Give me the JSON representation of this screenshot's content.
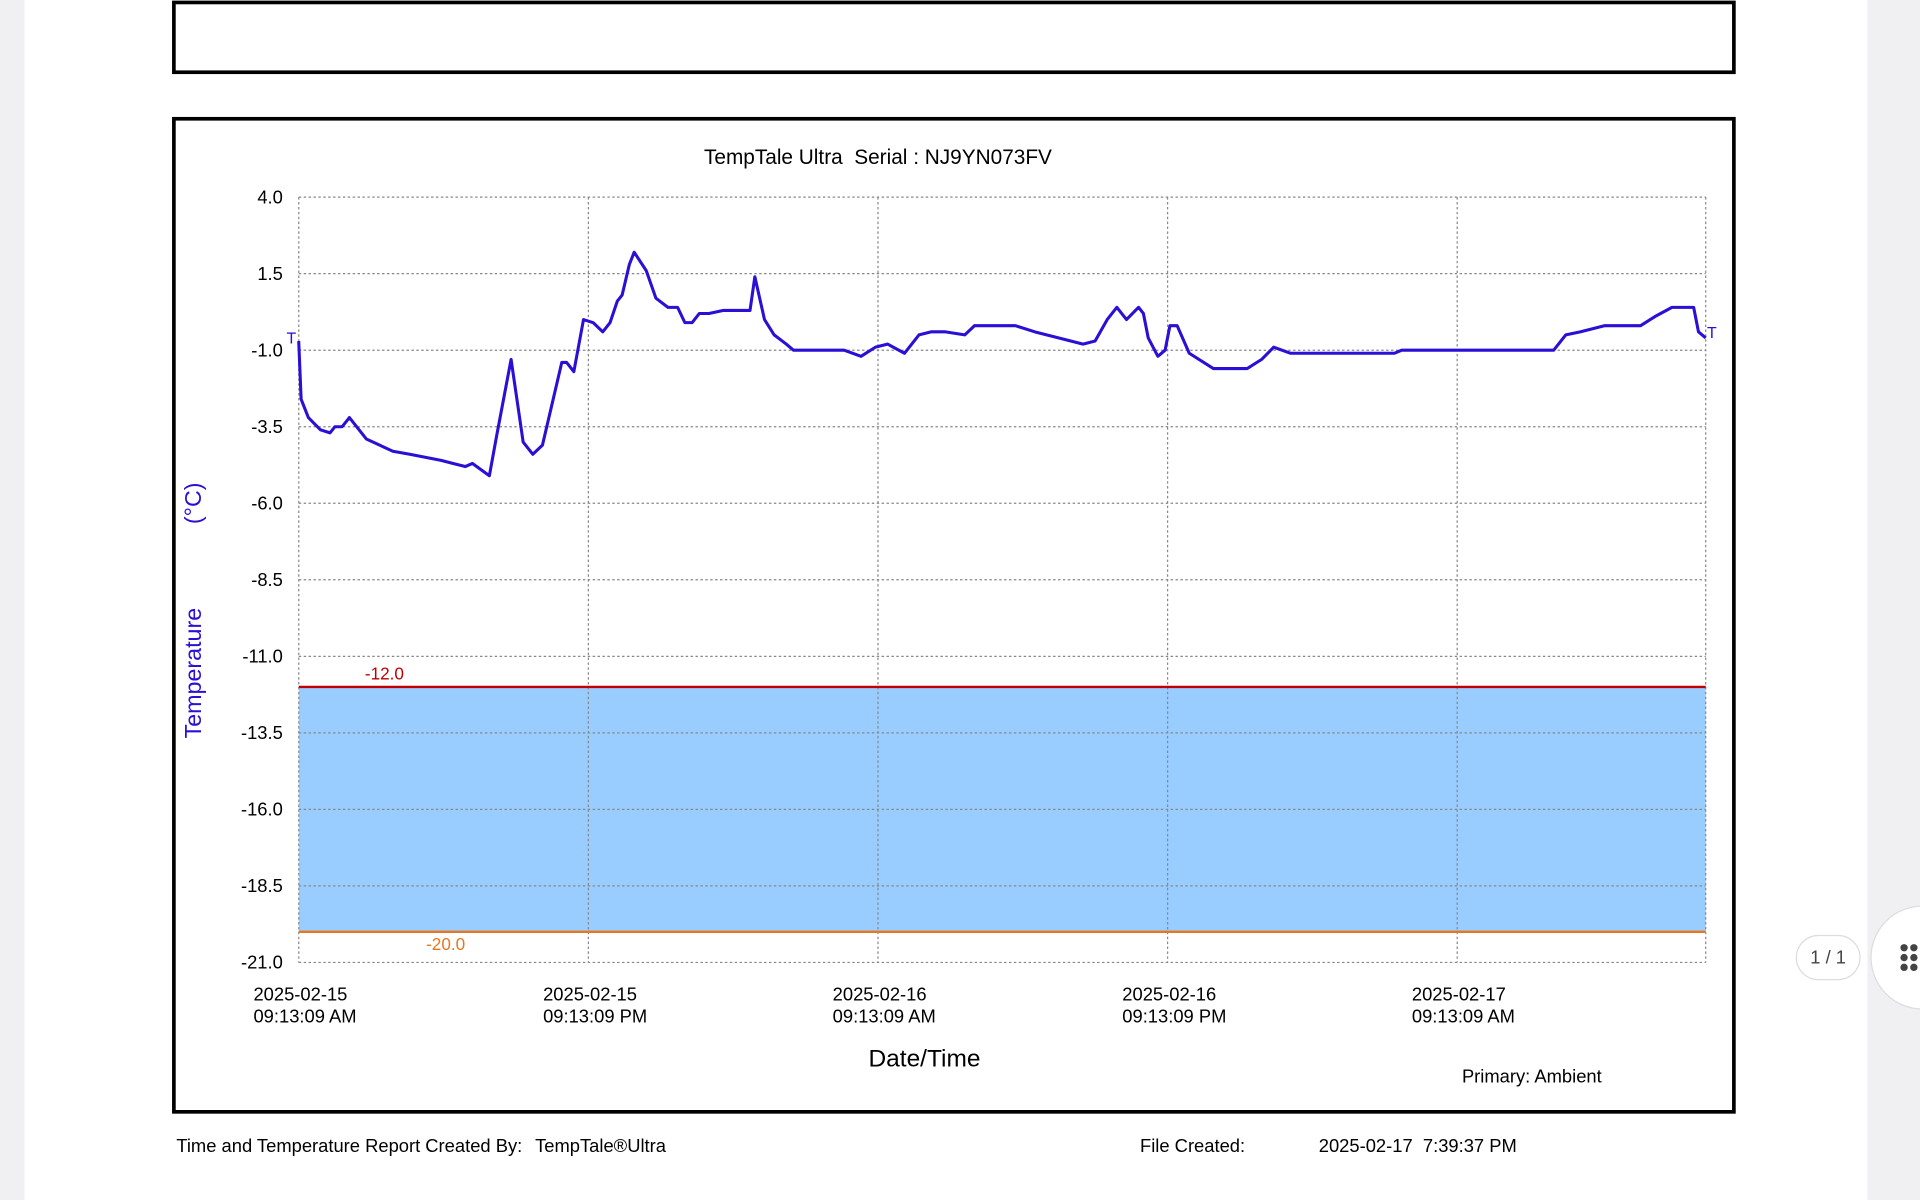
{
  "chart_data": {
    "type": "line",
    "title": "TempTale Ultra  Serial : NJ9YN073FV",
    "y_label": "Temperature",
    "y_unit": "(°C)",
    "x_label": "Date/Time",
    "legend_text": "Primary: Ambient",
    "end_marker": "T",
    "color": "#2a0fd6",
    "x": [
      "2025-02-15T09:13",
      "2025-02-15T09:19",
      "2025-02-15T09:37",
      "2025-02-15T10:07",
      "2025-02-15T10:31",
      "2025-02-15T10:43",
      "2025-02-15T11:01",
      "2025-02-15T11:19",
      "2025-02-15T12:01",
      "2025-02-15T13:07",
      "2025-02-15T13:49",
      "2025-02-15T15:07",
      "2025-02-15T15:37",
      "2025-02-15T16:07",
      "2025-02-15T16:25",
      "2025-02-15T17:07",
      "2025-02-15T17:25",
      "2025-02-15T18:01",
      "2025-02-15T18:31",
      "2025-02-15T18:55",
      "2025-02-15T19:19",
      "2025-02-15T20:07",
      "2025-02-15T20:19",
      "2025-02-15T20:37",
      "2025-02-15T21:01",
      "2025-02-15T21:25",
      "2025-02-15T21:49",
      "2025-02-15T22:07",
      "2025-02-15T22:25",
      "2025-02-15T22:37",
      "2025-02-15T22:55",
      "2025-02-15T23:07",
      "2025-02-15T23:37",
      "2025-02-16T00:01",
      "2025-02-16T00:31",
      "2025-02-16T00:55",
      "2025-02-16T01:13",
      "2025-02-16T01:31",
      "2025-02-16T01:49",
      "2025-02-16T02:13",
      "2025-02-16T02:49",
      "2025-02-16T03:55",
      "2025-02-16T04:07",
      "2025-02-16T04:31",
      "2025-02-16T04:55",
      "2025-02-16T05:25",
      "2025-02-16T05:43",
      "2025-02-16T06:19",
      "2025-02-16T07:01",
      "2025-02-16T07:49",
      "2025-02-16T08:31",
      "2025-02-16T09:07",
      "2025-02-16T09:37",
      "2025-02-16T10:19",
      "2025-02-16T10:55",
      "2025-02-16T11:25",
      "2025-02-16T12:01",
      "2025-02-16T12:49",
      "2025-02-16T13:13",
      "2025-02-16T14:55",
      "2025-02-16T15:43",
      "2025-02-16T16:43",
      "2025-02-16T17:43",
      "2025-02-16T18:13",
      "2025-02-16T18:43",
      "2025-02-16T19:07",
      "2025-02-16T19:31",
      "2025-02-16T20:01",
      "2025-02-16T20:13",
      "2025-02-16T20:25",
      "2025-02-16T20:49",
      "2025-02-16T21:07",
      "2025-02-16T21:19",
      "2025-02-16T21:37",
      "2025-02-16T22:07",
      "2025-02-16T23:07",
      "2025-02-17T00:31",
      "2025-02-17T01:07",
      "2025-02-17T01:37",
      "2025-02-17T02:19",
      "2025-02-17T06:37",
      "2025-02-17T06:55",
      "2025-02-17T13:13",
      "2025-02-17T13:43",
      "2025-02-17T14:19",
      "2025-02-17T15:19",
      "2025-02-17T16:49",
      "2025-02-17T17:25",
      "2025-02-17T18:07",
      "2025-02-17T19:01",
      "2025-02-17T19:13",
      "2025-02-17T19:31"
    ],
    "values": [
      -0.7,
      -2.6,
      -3.2,
      -3.6,
      -3.7,
      -3.5,
      -3.5,
      -3.2,
      -3.9,
      -4.3,
      -4.4,
      -4.6,
      -4.7,
      -4.8,
      -4.7,
      -5.1,
      -3.8,
      -1.3,
      -4.0,
      -4.4,
      -4.1,
      -1.4,
      -1.4,
      -1.7,
      0.0,
      -0.1,
      -0.4,
      -0.1,
      0.6,
      0.8,
      1.8,
      2.2,
      1.6,
      0.7,
      0.4,
      0.4,
      -0.1,
      -0.1,
      0.2,
      0.2,
      0.3,
      0.3,
      1.4,
      0.0,
      -0.5,
      -0.8,
      -1.0,
      -1.0,
      -1.0,
      -1.0,
      -1.2,
      -0.9,
      -0.8,
      -1.1,
      -0.5,
      -0.4,
      -0.4,
      -0.5,
      -0.2,
      -0.2,
      -0.4,
      -0.6,
      -0.8,
      -0.7,
      0.0,
      0.4,
      0.0,
      0.4,
      0.2,
      -0.6,
      -1.2,
      -1.0,
      -0.2,
      -0.2,
      -1.1,
      -1.6,
      -1.6,
      -1.3,
      -0.9,
      -1.1,
      -1.1,
      -1.0,
      -1.0,
      -0.5,
      -0.4,
      -0.2,
      -0.2,
      0.1,
      0.4,
      0.4,
      -0.4,
      -0.6
    ],
    "xlim": [
      "2025-02-15T09:13:09",
      "2025-02-17T19:31"
    ],
    "xticks": [
      {
        "value": "2025-02-15T09:13:09",
        "label": [
          "2025-02-15",
          "09:13:09 AM"
        ]
      },
      {
        "value": "2025-02-15T21:13:09",
        "label": [
          "2025-02-15",
          "09:13:09 PM"
        ]
      },
      {
        "value": "2025-02-16T09:13:09",
        "label": [
          "2025-02-16",
          "09:13:09 AM"
        ]
      },
      {
        "value": "2025-02-16T21:13:09",
        "label": [
          "2025-02-16",
          "09:13:09 PM"
        ]
      },
      {
        "value": "2025-02-17T09:13:09",
        "label": [
          "2025-02-17",
          "09:13:09 AM"
        ]
      }
    ],
    "ylim": [
      -21,
      4
    ],
    "yticks": [
      {
        "value": 4,
        "label": "4.0"
      },
      1.5,
      {
        "value": -1,
        "label": "-1.0"
      },
      -3.5,
      {
        "value": -6,
        "label": "-6.0"
      },
      -8.5,
      {
        "value": -11,
        "label": "-11.0"
      },
      -13.5,
      {
        "value": -16,
        "label": "-16.0"
      },
      -18.5,
      {
        "value": -21,
        "label": "-21.0"
      }
    ],
    "grid": true,
    "thresholds": [
      {
        "value": -12,
        "label": "-12.0",
        "color": "#c00000"
      },
      {
        "value": -20,
        "label": "-20.0",
        "color": "#e87722"
      }
    ],
    "band_color": "#99ccff"
  },
  "footer": {
    "created_by": "Time and Temperature Report Created By:",
    "product": "TempTale®Ultra",
    "file_created_label": "File Created:",
    "file_created": "2025-02-17  7:39:37 PM"
  },
  "viewer": {
    "page_indicator": "1 / 1"
  }
}
